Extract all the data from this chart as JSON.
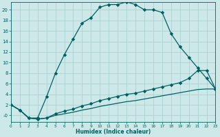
{
  "xlabel": "Humidex (Indice chaleur)",
  "bg_color": "#cce8e8",
  "grid_color": "#a8cccc",
  "line_color": "#006060",
  "xlim": [
    0,
    23
  ],
  "ylim": [
    -1.2,
    21.5
  ],
  "xticks": [
    0,
    1,
    2,
    3,
    4,
    5,
    6,
    7,
    8,
    9,
    10,
    11,
    12,
    13,
    14,
    15,
    16,
    17,
    18,
    19,
    20,
    21,
    22,
    23
  ],
  "yticks": [
    0,
    2,
    4,
    6,
    8,
    10,
    12,
    14,
    16,
    18,
    20
  ],
  "ytick_labels": [
    "-0",
    "2",
    "4",
    "6",
    "8",
    "10",
    "12",
    "14",
    "16",
    "18",
    "20"
  ],
  "curve_main_x": [
    0,
    1,
    2,
    3,
    4,
    5,
    6,
    7,
    8,
    9,
    10,
    11,
    12,
    13,
    14,
    15,
    16,
    17,
    18,
    19,
    20,
    21,
    22,
    23
  ],
  "curve_main_y": [
    2,
    1,
    -0.5,
    -0.5,
    3.5,
    8.0,
    11.5,
    14.5,
    17.5,
    18.5,
    20.5,
    21.0,
    21.0,
    21.5,
    21.0,
    20.0,
    20.0,
    19.5,
    15.5,
    13.0,
    11.0,
    9.0,
    7.0,
    5.0
  ],
  "curve_low1_x": [
    0,
    1,
    2,
    3,
    4,
    5,
    6,
    7,
    8,
    9,
    10,
    11,
    12,
    13,
    14,
    15,
    16,
    17,
    18,
    19,
    20,
    21,
    22,
    23
  ],
  "curve_low1_y": [
    2,
    1,
    -0.5,
    -0.7,
    -0.5,
    0.3,
    0.8,
    1.2,
    1.8,
    2.2,
    2.8,
    3.2,
    3.6,
    4.0,
    4.2,
    4.6,
    5.0,
    5.4,
    5.8,
    6.2,
    7.0,
    8.5,
    8.5,
    5.0
  ],
  "curve_low2_x": [
    0,
    1,
    2,
    3,
    4,
    5,
    6,
    7,
    8,
    9,
    10,
    11,
    12,
    13,
    14,
    15,
    16,
    17,
    18,
    19,
    20,
    21,
    22,
    23
  ],
  "curve_low2_y": [
    2,
    1,
    -0.5,
    -0.7,
    -0.5,
    0.0,
    0.3,
    0.6,
    1.0,
    1.3,
    1.7,
    2.0,
    2.3,
    2.6,
    2.8,
    3.1,
    3.4,
    3.7,
    4.0,
    4.3,
    4.6,
    4.9,
    5.0,
    5.0
  ]
}
